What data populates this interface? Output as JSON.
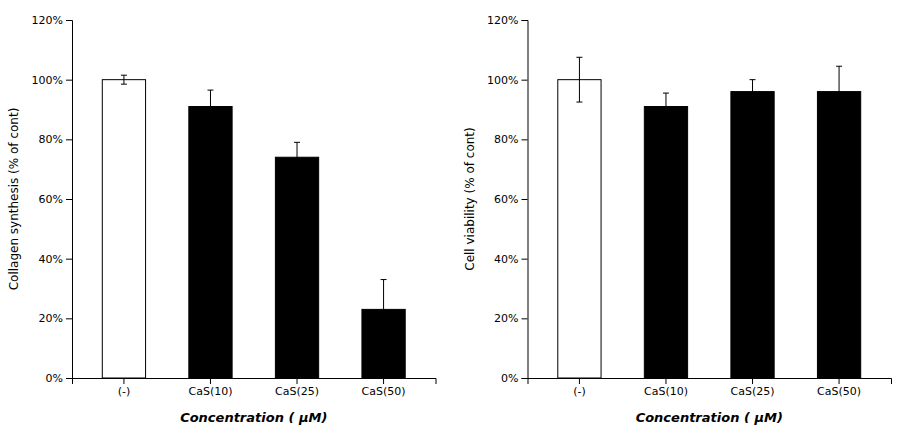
{
  "chart_data": [
    {
      "type": "bar",
      "categories": [
        "(-)",
        "CaS(10)",
        "CaS(25)",
        "CaS(50)"
      ],
      "values": [
        100,
        91,
        74,
        23
      ],
      "errors": [
        1.5,
        5.5,
        5.0,
        10.0
      ],
      "colors": [
        "white",
        "black",
        "black",
        "black"
      ],
      "ylabel": "Collagen synthesis (% of cont)",
      "xlabel": "Concentration ( μM)",
      "ylim": [
        0,
        120
      ],
      "yticks": [
        {
          "value": 0,
          "label": "0%"
        },
        {
          "value": 20,
          "label": "20%"
        },
        {
          "value": 40,
          "label": "40%"
        },
        {
          "value": 60,
          "label": "60%"
        },
        {
          "value": 80,
          "label": "80%"
        },
        {
          "value": 100,
          "label": "100%"
        },
        {
          "value": 120,
          "label": "120%"
        }
      ],
      "grid": false
    },
    {
      "type": "bar",
      "categories": [
        "(-)",
        "CaS(10)",
        "CaS(25)",
        "CaS(50)"
      ],
      "values": [
        100,
        91,
        96,
        96
      ],
      "errors": [
        7.5,
        4.5,
        4.0,
        8.5
      ],
      "colors": [
        "white",
        "black",
        "black",
        "black"
      ],
      "ylabel": "Cell viability (% of cont)",
      "xlabel": "Concentration ( μM)",
      "ylim": [
        0,
        120
      ],
      "yticks": [
        {
          "value": 0,
          "label": "0%"
        },
        {
          "value": 20,
          "label": "20%"
        },
        {
          "value": 40,
          "label": "40%"
        },
        {
          "value": 60,
          "label": "60%"
        },
        {
          "value": 80,
          "label": "80%"
        },
        {
          "value": 100,
          "label": "100%"
        },
        {
          "value": 120,
          "label": "120%"
        }
      ],
      "grid": false
    }
  ]
}
